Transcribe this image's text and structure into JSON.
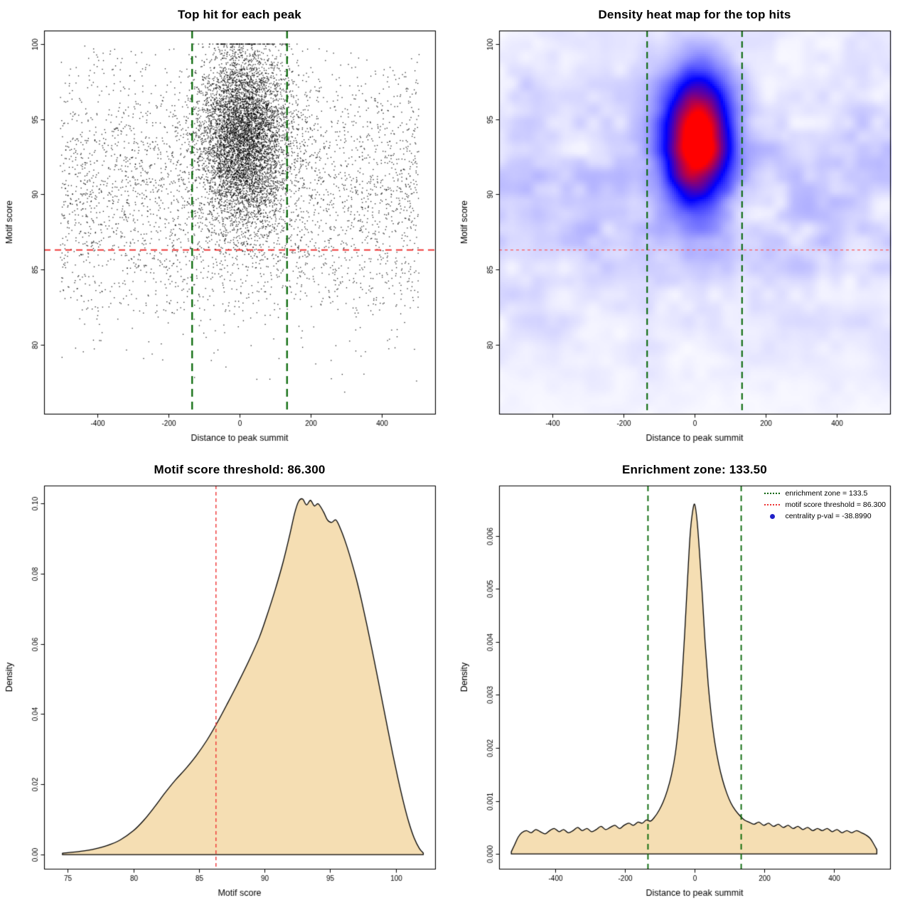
{
  "page": {
    "background": "#FFFFFF"
  },
  "chart_data": [
    {
      "id": "scatter",
      "type": "scatter",
      "title": "Top hit for each peak",
      "xlabel": "Distance to peak summit",
      "ylabel": "Motif score",
      "xlim": [
        -550,
        550
      ],
      "ylim": [
        75.4,
        100.9
      ],
      "xticks": [
        -400,
        -200,
        0,
        200,
        400
      ],
      "xtick_labels": [
        "-400",
        "-200",
        "0",
        "200",
        "400"
      ],
      "yticks": [
        80,
        85,
        90,
        95,
        100
      ],
      "ytick_labels": [
        "80",
        "85",
        "90",
        "95",
        "100"
      ],
      "point_color": "#000000",
      "hline": {
        "y": 86.3,
        "color": "#EE2222",
        "width": 1.7,
        "dash": [
          9,
          6
        ]
      },
      "vlines": {
        "xs": [
          -133.5,
          133.5
        ],
        "color": "#006400",
        "width": 2.2,
        "dash": [
          11,
          7
        ]
      },
      "points": {
        "seed": 42,
        "background": {
          "n": 3600,
          "x_range": [
            -505,
            505
          ],
          "y_mean": 90,
          "y_sd": 4.8,
          "y_min": 76.8,
          "y_max": 99.9
        },
        "cluster": {
          "n": 6200,
          "x_mean": 12,
          "x_sd": 62,
          "y_mean": 93.9,
          "y_sd": 3.0,
          "y_cap": 100,
          "y_min": 83
        }
      },
      "summary": "Top motif hit per peak; dense cluster centered at distance ~0 with motif score ~94, scores capped at 100; red dashed score threshold 86.3; green dashed enrichment zone at +/-133.5"
    },
    {
      "id": "heatmap",
      "type": "heatmap",
      "title": "Density heat map for the top hits",
      "xlabel": "Distance to peak summit",
      "ylabel": "Motif score",
      "xlim": [
        -550,
        550
      ],
      "ylim": [
        75.4,
        100.9
      ],
      "xticks": [
        -400,
        -200,
        0,
        200,
        400
      ],
      "xtick_labels": [
        "-400",
        "-200",
        "0",
        "200",
        "400"
      ],
      "yticks": [
        80,
        85,
        90,
        95,
        100
      ],
      "ytick_labels": [
        "80",
        "85",
        "90",
        "95",
        "100"
      ],
      "palette": [
        "#FFFFFF",
        "#0000FF",
        "#FF0000"
      ],
      "blob": {
        "x": 8,
        "y": 93.6,
        "x_sd": 62,
        "y_sd": 2.9,
        "amp": 1.12
      },
      "band": {
        "y": 90.5,
        "y_sd": 8.5,
        "base": 0.025,
        "noise_amp": 0.12
      },
      "noise_seed": 7,
      "hline": {
        "y": 86.3,
        "color": "#FF5555",
        "width": 1.2,
        "dash": [
          4,
          4
        ]
      },
      "vlines": {
        "xs": [
          -133.5,
          133.5
        ],
        "color": "#006400",
        "width": 2.0,
        "dash": [
          9,
          6
        ]
      },
      "summary": "2D kernel density of top hits: red hotspot at distance ~0, motif score ~94, blue halo fading to white"
    },
    {
      "id": "score-density",
      "type": "density",
      "title": "Motif score threshold: 86.300",
      "xlabel": "Motif score",
      "ylabel": "Density",
      "xlim": [
        73.2,
        103.0
      ],
      "ylim": [
        -0.004,
        0.105
      ],
      "xticks": [
        75,
        80,
        85,
        90,
        95,
        100
      ],
      "xtick_labels": [
        "75",
        "80",
        "85",
        "90",
        "95",
        "100"
      ],
      "yticks": [
        0,
        0.02,
        0.04,
        0.06,
        0.08,
        0.1
      ],
      "ytick_labels": [
        "0.00",
        "0.02",
        "0.04",
        "0.06",
        "0.08",
        "0.10"
      ],
      "fill": "#F5DEB3",
      "stroke": "#000000",
      "vlines": {
        "xs": [
          86.3
        ],
        "color": "#EE3333",
        "width": 1.4,
        "dash": [
          5,
          4
        ]
      },
      "curve": [
        [
          74.6,
          0.0004
        ],
        [
          76,
          0.001
        ],
        [
          77,
          0.0016
        ],
        [
          78,
          0.0026
        ],
        [
          79,
          0.0042
        ],
        [
          80,
          0.0068
        ],
        [
          80.8,
          0.0098
        ],
        [
          81.6,
          0.0135
        ],
        [
          82.4,
          0.0175
        ],
        [
          83.2,
          0.0212
        ],
        [
          84,
          0.0245
        ],
        [
          84.8,
          0.0282
        ],
        [
          85.6,
          0.0325
        ],
        [
          86.4,
          0.0376
        ],
        [
          87.2,
          0.0432
        ],
        [
          88,
          0.049
        ],
        [
          88.8,
          0.0551
        ],
        [
          89.6,
          0.0618
        ],
        [
          90.2,
          0.0682
        ],
        [
          90.8,
          0.0752
        ],
        [
          91.4,
          0.083
        ],
        [
          91.9,
          0.0906
        ],
        [
          92.3,
          0.0972
        ],
        [
          92.6,
          0.1005
        ],
        [
          92.9,
          0.1012
        ],
        [
          93.2,
          0.0995
        ],
        [
          93.5,
          0.1008
        ],
        [
          93.8,
          0.0992
        ],
        [
          94.1,
          0.0998
        ],
        [
          94.5,
          0.0975
        ],
        [
          94.8,
          0.0952
        ],
        [
          95.1,
          0.0945
        ],
        [
          95.45,
          0.0952
        ],
        [
          95.8,
          0.0926
        ],
        [
          96.2,
          0.0886
        ],
        [
          96.6,
          0.0838
        ],
        [
          97,
          0.0784
        ],
        [
          97.4,
          0.0722
        ],
        [
          97.8,
          0.0654
        ],
        [
          98.2,
          0.0582
        ],
        [
          98.6,
          0.0508
        ],
        [
          99,
          0.0432
        ],
        [
          99.4,
          0.0356
        ],
        [
          99.8,
          0.0282
        ],
        [
          100.2,
          0.0212
        ],
        [
          100.6,
          0.0148
        ],
        [
          101,
          0.0092
        ],
        [
          101.4,
          0.0048
        ],
        [
          101.8,
          0.0018
        ],
        [
          102.1,
          0.0005
        ]
      ]
    },
    {
      "id": "summit-density",
      "type": "density",
      "title": "Enrichment zone: 133.50",
      "xlabel": "Distance to peak summit",
      "ylabel": "Density",
      "xlim": [
        -560,
        560
      ],
      "ylim": [
        -0.00028,
        0.00695
      ],
      "xticks": [
        -400,
        -200,
        0,
        200,
        400
      ],
      "xtick_labels": [
        "-400",
        "-200",
        "0",
        "200",
        "400"
      ],
      "yticks": [
        0,
        0.001,
        0.002,
        0.003,
        0.004,
        0.005,
        0.006
      ],
      "ytick_labels": [
        "0.000",
        "0.001",
        "0.002",
        "0.003",
        "0.004",
        "0.005",
        "0.006"
      ],
      "fill": "#F5DEB3",
      "stroke": "#000000",
      "vlines": {
        "xs": [
          -133.5,
          133.5
        ],
        "color": "#006400",
        "width": 1.8,
        "dash": [
          8,
          6
        ]
      },
      "curve": [
        [
          -525,
          4e-05
        ],
        [
          -515,
          0.00018
        ],
        [
          -505,
          0.00032
        ],
        [
          -495,
          0.0004
        ],
        [
          -482,
          0.00044
        ],
        [
          -468,
          0.0004
        ],
        [
          -455,
          0.00046
        ],
        [
          -442,
          0.00042
        ],
        [
          -428,
          0.00038
        ],
        [
          -415,
          0.00044
        ],
        [
          -402,
          0.00048
        ],
        [
          -388,
          0.00042
        ],
        [
          -375,
          0.00046
        ],
        [
          -362,
          0.0004
        ],
        [
          -348,
          0.00044
        ],
        [
          -335,
          0.0005
        ],
        [
          -322,
          0.00044
        ],
        [
          -308,
          0.00048
        ],
        [
          -295,
          0.00042
        ],
        [
          -282,
          0.00046
        ],
        [
          -268,
          0.00052
        ],
        [
          -255,
          0.00046
        ],
        [
          -242,
          0.0005
        ],
        [
          -228,
          0.00054
        ],
        [
          -215,
          0.00048
        ],
        [
          -202,
          0.00054
        ],
        [
          -188,
          0.00058
        ],
        [
          -175,
          0.00054
        ],
        [
          -162,
          0.0006
        ],
        [
          -150,
          0.00058
        ],
        [
          -138,
          0.00064
        ],
        [
          -126,
          0.00062
        ],
        [
          -114,
          0.0007
        ],
        [
          -102,
          0.00082
        ],
        [
          -90,
          0.00098
        ],
        [
          -78,
          0.0012
        ],
        [
          -66,
          0.0015
        ],
        [
          -55,
          0.0019
        ],
        [
          -45,
          0.0025
        ],
        [
          -36,
          0.0033
        ],
        [
          -28,
          0.0042
        ],
        [
          -20,
          0.0052
        ],
        [
          -13,
          0.006
        ],
        [
          -7,
          0.0064
        ],
        [
          0,
          0.0066
        ],
        [
          7,
          0.0063
        ],
        [
          14,
          0.0057
        ],
        [
          22,
          0.0049
        ],
        [
          30,
          0.004
        ],
        [
          39,
          0.0032
        ],
        [
          48,
          0.0026
        ],
        [
          58,
          0.0021
        ],
        [
          69,
          0.0017
        ],
        [
          80,
          0.0014
        ],
        [
          92,
          0.00115
        ],
        [
          104,
          0.00096
        ],
        [
          117,
          0.00082
        ],
        [
          130,
          0.00072
        ],
        [
          143,
          0.00064
        ],
        [
          156,
          0.0006
        ],
        [
          170,
          0.00056
        ],
        [
          184,
          0.0006
        ],
        [
          198,
          0.00054
        ],
        [
          212,
          0.00058
        ],
        [
          226,
          0.00052
        ],
        [
          240,
          0.00056
        ],
        [
          254,
          0.0005
        ],
        [
          268,
          0.00054
        ],
        [
          282,
          0.00048
        ],
        [
          296,
          0.00052
        ],
        [
          310,
          0.00046
        ],
        [
          324,
          0.0005
        ],
        [
          338,
          0.00044
        ],
        [
          352,
          0.00048
        ],
        [
          366,
          0.00044
        ],
        [
          380,
          0.00048
        ],
        [
          394,
          0.00042
        ],
        [
          408,
          0.00046
        ],
        [
          422,
          0.0004
        ],
        [
          436,
          0.00044
        ],
        [
          450,
          0.0004
        ],
        [
          464,
          0.00044
        ],
        [
          478,
          0.0004
        ],
        [
          490,
          0.00036
        ],
        [
          502,
          0.0003
        ],
        [
          512,
          0.0002
        ],
        [
          522,
          8e-05
        ]
      ],
      "legend": [
        {
          "label": "enrichment zone = 133.5",
          "marker": "dotted-line",
          "color": "#006400"
        },
        {
          "label": "motif score threshold = 86.300",
          "marker": "dotted-line",
          "color": "#EE3333"
        },
        {
          "label": "centrality p-val = -38.8990",
          "marker": "dot",
          "color": "#2020C8"
        }
      ]
    }
  ]
}
